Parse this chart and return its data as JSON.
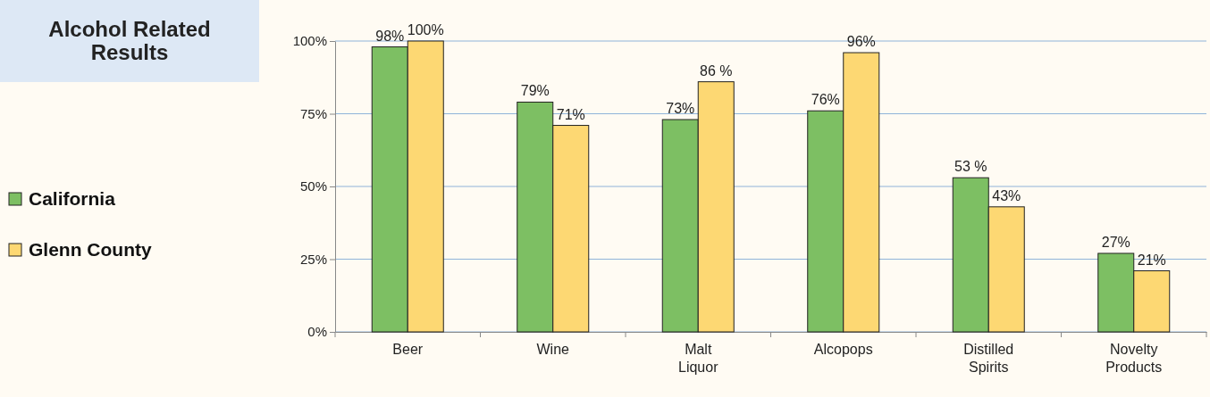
{
  "chart_data": {
    "type": "bar",
    "title": "Alcohol Related Results",
    "categories": [
      "Beer",
      "Wine",
      "Malt Liquor",
      "Alcopops",
      "Distilled Spirits",
      "Novelty Products"
    ],
    "series": [
      {
        "name": "California",
        "color": "#7dbf63",
        "values": [
          98,
          79,
          73,
          76,
          53,
          27
        ],
        "value_labels": [
          "98%",
          "79%",
          "73%",
          "76%",
          "53 %",
          "27%"
        ]
      },
      {
        "name": "Glenn County",
        "color": "#fdd873",
        "values": [
          100,
          71,
          86,
          96,
          43,
          21
        ],
        "value_labels": [
          "100%",
          "71%",
          "86 %",
          "96%",
          "43%",
          "21%"
        ]
      }
    ],
    "ylim": [
      0,
      100
    ],
    "yticks": [
      {
        "value": 0,
        "label": "0%"
      },
      {
        "value": 25,
        "label": "25%"
      },
      {
        "value": 50,
        "label": "50%"
      },
      {
        "value": 75,
        "label": "75%"
      },
      {
        "value": 100,
        "label": "100%"
      }
    ],
    "grid": "y",
    "legend": "left"
  }
}
